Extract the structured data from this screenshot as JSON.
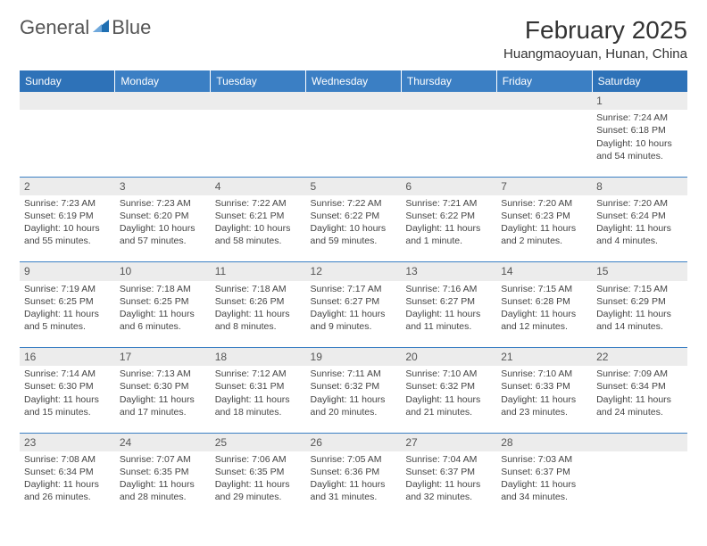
{
  "logo": {
    "text1": "General",
    "text2": "Blue"
  },
  "title": "February 2025",
  "location": "Huangmaoyuan, Hunan, China",
  "colors": {
    "header_bg": "#3b7fc4",
    "header_bg_weekend": "#2e72b8",
    "header_text": "#ffffff",
    "daynum_bg": "#ececec",
    "border": "#3b7fc4",
    "text": "#444444",
    "logo_blue": "#1f6fb2"
  },
  "day_headers": [
    "Sunday",
    "Monday",
    "Tuesday",
    "Wednesday",
    "Thursday",
    "Friday",
    "Saturday"
  ],
  "weeks": [
    [
      null,
      null,
      null,
      null,
      null,
      null,
      {
        "n": "1",
        "sunrise": "7:24 AM",
        "sunset": "6:18 PM",
        "daylight": "10 hours and 54 minutes."
      }
    ],
    [
      {
        "n": "2",
        "sunrise": "7:23 AM",
        "sunset": "6:19 PM",
        "daylight": "10 hours and 55 minutes."
      },
      {
        "n": "3",
        "sunrise": "7:23 AM",
        "sunset": "6:20 PM",
        "daylight": "10 hours and 57 minutes."
      },
      {
        "n": "4",
        "sunrise": "7:22 AM",
        "sunset": "6:21 PM",
        "daylight": "10 hours and 58 minutes."
      },
      {
        "n": "5",
        "sunrise": "7:22 AM",
        "sunset": "6:22 PM",
        "daylight": "10 hours and 59 minutes."
      },
      {
        "n": "6",
        "sunrise": "7:21 AM",
        "sunset": "6:22 PM",
        "daylight": "11 hours and 1 minute."
      },
      {
        "n": "7",
        "sunrise": "7:20 AM",
        "sunset": "6:23 PM",
        "daylight": "11 hours and 2 minutes."
      },
      {
        "n": "8",
        "sunrise": "7:20 AM",
        "sunset": "6:24 PM",
        "daylight": "11 hours and 4 minutes."
      }
    ],
    [
      {
        "n": "9",
        "sunrise": "7:19 AM",
        "sunset": "6:25 PM",
        "daylight": "11 hours and 5 minutes."
      },
      {
        "n": "10",
        "sunrise": "7:18 AM",
        "sunset": "6:25 PM",
        "daylight": "11 hours and 6 minutes."
      },
      {
        "n": "11",
        "sunrise": "7:18 AM",
        "sunset": "6:26 PM",
        "daylight": "11 hours and 8 minutes."
      },
      {
        "n": "12",
        "sunrise": "7:17 AM",
        "sunset": "6:27 PM",
        "daylight": "11 hours and 9 minutes."
      },
      {
        "n": "13",
        "sunrise": "7:16 AM",
        "sunset": "6:27 PM",
        "daylight": "11 hours and 11 minutes."
      },
      {
        "n": "14",
        "sunrise": "7:15 AM",
        "sunset": "6:28 PM",
        "daylight": "11 hours and 12 minutes."
      },
      {
        "n": "15",
        "sunrise": "7:15 AM",
        "sunset": "6:29 PM",
        "daylight": "11 hours and 14 minutes."
      }
    ],
    [
      {
        "n": "16",
        "sunrise": "7:14 AM",
        "sunset": "6:30 PM",
        "daylight": "11 hours and 15 minutes."
      },
      {
        "n": "17",
        "sunrise": "7:13 AM",
        "sunset": "6:30 PM",
        "daylight": "11 hours and 17 minutes."
      },
      {
        "n": "18",
        "sunrise": "7:12 AM",
        "sunset": "6:31 PM",
        "daylight": "11 hours and 18 minutes."
      },
      {
        "n": "19",
        "sunrise": "7:11 AM",
        "sunset": "6:32 PM",
        "daylight": "11 hours and 20 minutes."
      },
      {
        "n": "20",
        "sunrise": "7:10 AM",
        "sunset": "6:32 PM",
        "daylight": "11 hours and 21 minutes."
      },
      {
        "n": "21",
        "sunrise": "7:10 AM",
        "sunset": "6:33 PM",
        "daylight": "11 hours and 23 minutes."
      },
      {
        "n": "22",
        "sunrise": "7:09 AM",
        "sunset": "6:34 PM",
        "daylight": "11 hours and 24 minutes."
      }
    ],
    [
      {
        "n": "23",
        "sunrise": "7:08 AM",
        "sunset": "6:34 PM",
        "daylight": "11 hours and 26 minutes."
      },
      {
        "n": "24",
        "sunrise": "7:07 AM",
        "sunset": "6:35 PM",
        "daylight": "11 hours and 28 minutes."
      },
      {
        "n": "25",
        "sunrise": "7:06 AM",
        "sunset": "6:35 PM",
        "daylight": "11 hours and 29 minutes."
      },
      {
        "n": "26",
        "sunrise": "7:05 AM",
        "sunset": "6:36 PM",
        "daylight": "11 hours and 31 minutes."
      },
      {
        "n": "27",
        "sunrise": "7:04 AM",
        "sunset": "6:37 PM",
        "daylight": "11 hours and 32 minutes."
      },
      {
        "n": "28",
        "sunrise": "7:03 AM",
        "sunset": "6:37 PM",
        "daylight": "11 hours and 34 minutes."
      },
      null
    ]
  ],
  "labels": {
    "sunrise": "Sunrise: ",
    "sunset": "Sunset: ",
    "daylight": "Daylight: "
  }
}
